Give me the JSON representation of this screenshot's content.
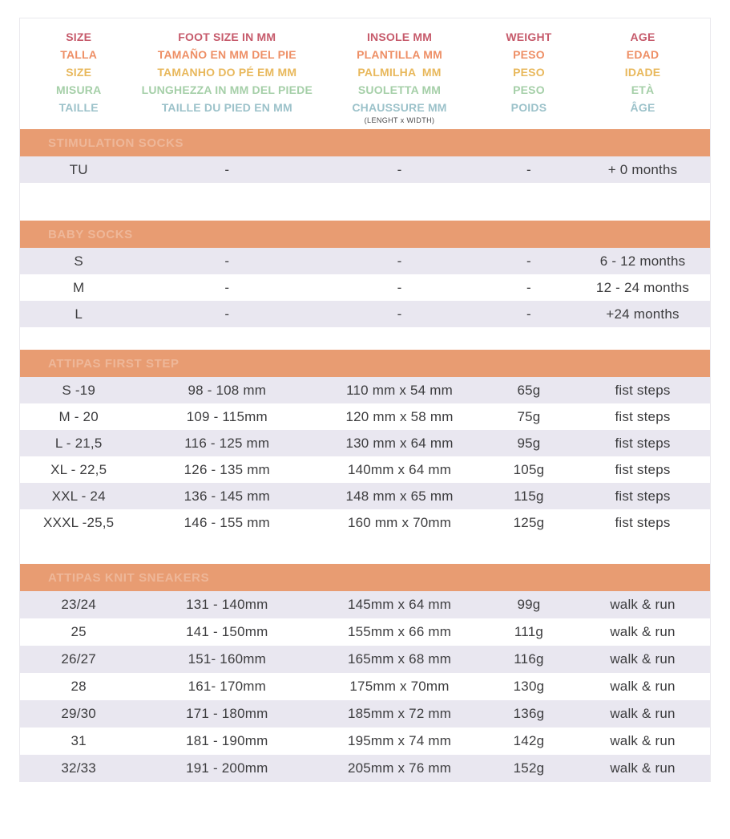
{
  "header": {
    "columns": [
      {
        "lines": [
          "SIZE",
          "TALLA",
          "SIZE",
          "MISURA",
          "TAILLE"
        ]
      },
      {
        "lines": [
          "FOOT SIZE IN MM",
          "TAMAÑO EN MM DEL PIE",
          "TAMANHO DO PÉ EM MM",
          "LUNGHEZZA IN MM DEL PIEDE",
          "TAILLE DU PIED EN MM"
        ]
      },
      {
        "lines": [
          "INSOLE MM",
          "PLANTILLA MM",
          "PALMILHA  MM",
          "SUOLETTA MM",
          "CHAUSSURE MM"
        ],
        "note": "(LENGHT x WIDTH)"
      },
      {
        "lines": [
          "WEIGHT",
          "PESO",
          "PESO",
          "PESO",
          "POIDS"
        ]
      },
      {
        "lines": [
          "AGE",
          "EDAD",
          "IDADE",
          "ETÀ",
          "ÂGE"
        ]
      }
    ]
  },
  "sections": [
    {
      "title": "STIMULATION SOCKS",
      "rows": [
        [
          "TU",
          "-",
          "-",
          "-",
          "+ 0 months"
        ]
      ]
    },
    {
      "title": "BABY SOCKS",
      "rows": [
        [
          "S",
          "-",
          "-",
          "-",
          "6 - 12 months"
        ],
        [
          "M",
          "-",
          "-",
          "-",
          "12 - 24 months"
        ],
        [
          "L",
          "-",
          "-",
          "-",
          "+24 months"
        ]
      ]
    },
    {
      "title": "ATTIPAS FIRST STEP",
      "rows": [
        [
          "S -19",
          "98 - 108 mm",
          "110 mm x 54 mm",
          "65g",
          "fist steps"
        ],
        [
          "M - 20",
          "109 - 115mm",
          "120 mm x 58 mm",
          "75g",
          "fist steps"
        ],
        [
          "L - 21,5",
          "116 - 125 mm",
          "130 mm x 64 mm",
          "95g",
          "fist steps"
        ],
        [
          "XL - 22,5",
          "126 - 135 mm",
          "140mm x 64 mm",
          "105g",
          "fist steps"
        ],
        [
          "XXL - 24",
          "136 - 145 mm",
          "148 mm x 65 mm",
          "115g",
          "fist steps"
        ],
        [
          "XXXL -25,5",
          "146 - 155 mm",
          "160 mm x 70mm",
          "125g",
          "fist steps"
        ]
      ]
    },
    {
      "title": "ATTIPAS KNIT SNEAKERS",
      "rows": [
        [
          "23/24",
          "131 - 140mm",
          "145mm x 64 mm",
          "99g",
          "walk & run"
        ],
        [
          "25",
          "141 - 150mm",
          "155mm x 66 mm",
          "111g",
          "walk & run"
        ],
        [
          "26/27",
          "151- 160mm",
          "165mm x 68 mm",
          "116g",
          "walk & run"
        ],
        [
          "28",
          "161- 170mm",
          "175mm x 70mm",
          "130g",
          "walk & run"
        ],
        [
          "29/30",
          "171 - 180mm",
          "185mm x 72 mm",
          "136g",
          "walk & run"
        ],
        [
          "31",
          "181 - 190mm",
          "195mm x 74 mm",
          "142g",
          "walk & run"
        ],
        [
          "32/33",
          "191 - 200mm",
          "205mm x 76 mm",
          "152g",
          "walk & run"
        ]
      ]
    }
  ],
  "colors": {
    "header_line_colors": [
      "#c65a6b",
      "#ee8f66",
      "#e8b85c",
      "#a5cfa8",
      "#9cc2ca"
    ],
    "header_note_text": "#4a4a4c",
    "section_bar_bg": "#e89c72",
    "section_bar_text": "rgba(255,255,255,0.28)",
    "row_alt_bg": "#e9e7f0",
    "row_text": "#3c3c3e",
    "table_border": "#e9e8ed"
  }
}
